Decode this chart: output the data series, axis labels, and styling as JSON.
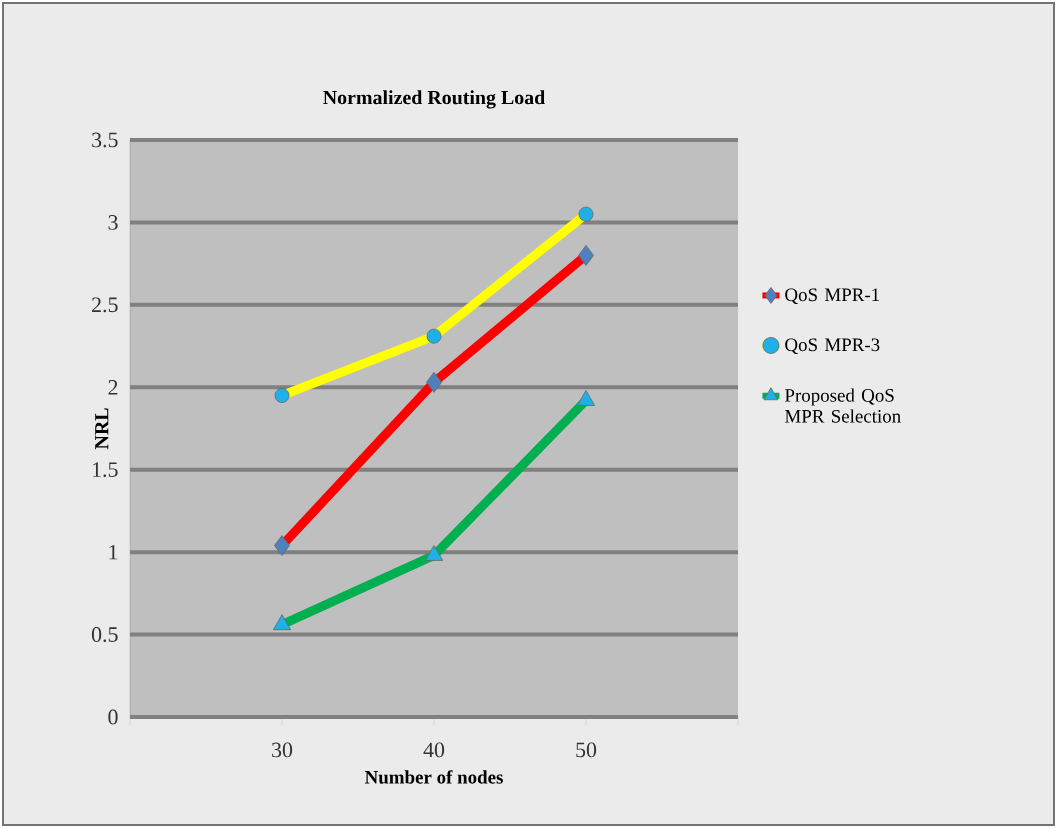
{
  "chart_data": {
    "type": "line",
    "title": "Normalized Routing Load",
    "xlabel": "Number of nodes",
    "ylabel": "NRL",
    "x": [
      30,
      40,
      50
    ],
    "xlim": [
      20,
      60
    ],
    "xticks": [
      {
        "value": 20,
        "label": null
      },
      30,
      40,
      50,
      {
        "value": 60,
        "label": null
      }
    ],
    "ylim": [
      0,
      3.5
    ],
    "yticks": [
      0,
      0.5,
      1,
      1.5,
      2,
      2.5,
      3,
      3.5
    ],
    "grid": "y",
    "legend": "right",
    "series": [
      {
        "name": "QoS MPR-1",
        "color": "#ff0000",
        "marker": "diamond",
        "values": [
          1.04,
          2.03,
          2.8
        ]
      },
      {
        "name": "QoS MPR-3",
        "color": "#ffff00",
        "marker": "circle",
        "values": [
          1.95,
          2.31,
          3.05
        ]
      },
      {
        "name": "Proposed QoS MPR Selection",
        "color": "#00b050",
        "marker": "triangle",
        "values": [
          0.56,
          0.98,
          1.92
        ]
      }
    ]
  }
}
